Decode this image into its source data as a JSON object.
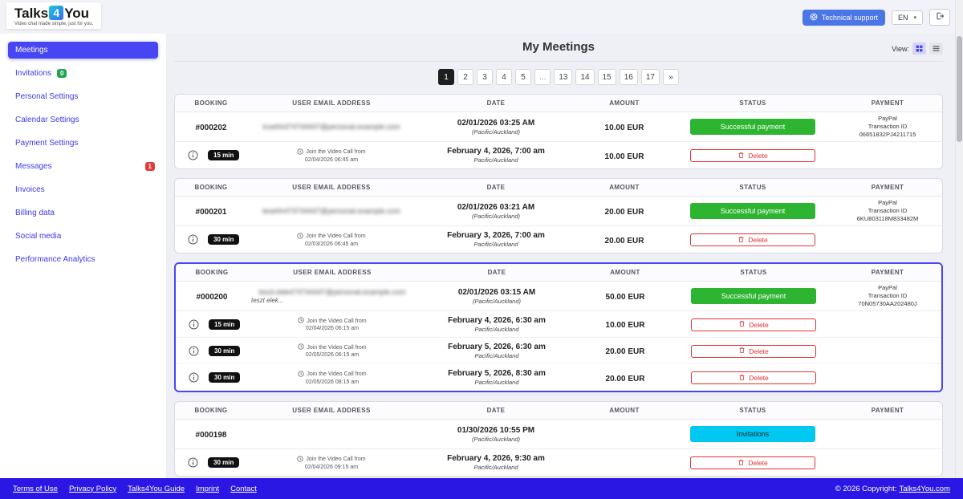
{
  "colors": {
    "accent": "#4845f2",
    "success": "#2db430",
    "invitations": "#00c8f0",
    "danger": "#e03131",
    "footer": "#2a17e4",
    "support_button": "#4b76e8"
  },
  "header": {
    "logo_talks": "Talks",
    "logo_4": "4",
    "logo_you": "You",
    "tagline": "Video chat made simple, just for you.",
    "technical_support_label": "Technical support",
    "language": "EN"
  },
  "sidebar": {
    "items": [
      {
        "label": "Meetings",
        "active": true
      },
      {
        "label": "Invitations",
        "badge": "0",
        "badge_color": "#21a352"
      },
      {
        "label": "Personal Settings"
      },
      {
        "label": "Calendar Settings"
      },
      {
        "label": "Payment Settings"
      },
      {
        "label": "Messages",
        "badge": "1",
        "badge_color": "#e23c3c",
        "badge_right": true
      },
      {
        "label": "Invoices"
      },
      {
        "label": "Billing data"
      },
      {
        "label": "Social media"
      },
      {
        "label": "Performance Analytics"
      }
    ]
  },
  "main": {
    "title": "My Meetings",
    "view_label": "View:",
    "pagination": [
      {
        "label": "1",
        "active": true
      },
      {
        "label": "2"
      },
      {
        "label": "3"
      },
      {
        "label": "4"
      },
      {
        "label": "5"
      },
      {
        "label": "...",
        "disabled": true
      },
      {
        "label": "13"
      },
      {
        "label": "14"
      },
      {
        "label": "15"
      },
      {
        "label": "16"
      },
      {
        "label": "17"
      },
      {
        "label": "»"
      }
    ],
    "columns": [
      "BOOKING",
      "USER EMAIL ADDRESS",
      "DATE",
      "AMOUNT",
      "STATUS",
      "PAYMENT"
    ],
    "join_prefix": "Join the Video Call from",
    "delete_label": "Delete",
    "cards": [
      {
        "booking_id": "#000202",
        "email": "tcsehh474744447@personal.example.com",
        "email_blurred": true,
        "email_note": "",
        "date": "02/01/2026 03:25 AM",
        "timezone": "(Pacific/Auckland)",
        "amount": "10.00 EUR",
        "status": {
          "label": "Successful payment",
          "type": "success"
        },
        "payment": {
          "method": "PayPal",
          "label": "Transaction ID",
          "id": "06651832PJ4211715"
        },
        "highlighted": false,
        "sessions": [
          {
            "duration": "15 min",
            "join_date": "02/04/2026 06:45 am",
            "date": "February 4, 2026, 7:00 am",
            "timezone": "Pacific/Auckland",
            "amount": "10.00 EUR"
          }
        ]
      },
      {
        "booking_id": "#000201",
        "email": "tesehh474744447@personal.example.com",
        "email_blurred": true,
        "email_note": "",
        "date": "02/01/2026 03:21 AM",
        "timezone": "(Pacific/Auckland)",
        "amount": "20.00 EUR",
        "status": {
          "label": "Successful payment",
          "type": "success"
        },
        "payment": {
          "method": "PayPal",
          "label": "Transaction ID",
          "id": "6KU803118M833482M"
        },
        "highlighted": false,
        "sessions": [
          {
            "duration": "30 min",
            "join_date": "02/03/2026 06:45 am",
            "date": "February 3, 2026, 7:00 am",
            "timezone": "Pacific/Auckland",
            "amount": "20.00 EUR"
          }
        ]
      },
      {
        "booking_id": "#000200",
        "email": "teszt.elek474744447@personal.example.com",
        "email_blurred": true,
        "email_note": "teszt elek...",
        "date": "02/01/2026 03:15 AM",
        "timezone": "(Pacific/Auckland)",
        "amount": "50.00 EUR",
        "status": {
          "label": "Successful payment",
          "type": "success"
        },
        "payment": {
          "method": "PayPal",
          "label": "Transaction ID",
          "id": "70N05730AA202480J"
        },
        "highlighted": true,
        "sessions": [
          {
            "duration": "15 min",
            "join_date": "02/04/2026 06:15 am",
            "date": "February 4, 2026, 6:30 am",
            "timezone": "Pacific/Auckland",
            "amount": "10.00 EUR"
          },
          {
            "duration": "30 min",
            "join_date": "02/05/2026 06:15 am",
            "date": "February 5, 2026, 6:30 am",
            "timezone": "Pacific/Auckland",
            "amount": "20.00 EUR"
          },
          {
            "duration": "30 min",
            "join_date": "02/05/2026 08:15 am",
            "date": "February 5, 2026, 8:30 am",
            "timezone": "Pacific/Auckland",
            "amount": "20.00 EUR"
          }
        ]
      },
      {
        "booking_id": "#000198",
        "email": "",
        "email_blurred": false,
        "email_note": "",
        "date": "01/30/2026 10:55 PM",
        "timezone": "(Pacific/Auckland)",
        "amount": "",
        "status": {
          "label": "Invitations",
          "type": "invitations"
        },
        "payment": null,
        "highlighted": false,
        "sessions": [
          {
            "duration": "30 min",
            "join_date": "02/04/2026 09:15 am",
            "date": "February 4, 2026, 9:30 am",
            "timezone": "Pacific/Auckland",
            "amount": ""
          }
        ]
      }
    ]
  },
  "footer": {
    "links": [
      "Terms of Use",
      "Privacy Policy",
      "Talks4You Guide",
      "Imprint",
      "Contact"
    ],
    "copyright": "© 2026 Copyright:",
    "copyright_link": "Talks4You.com"
  }
}
